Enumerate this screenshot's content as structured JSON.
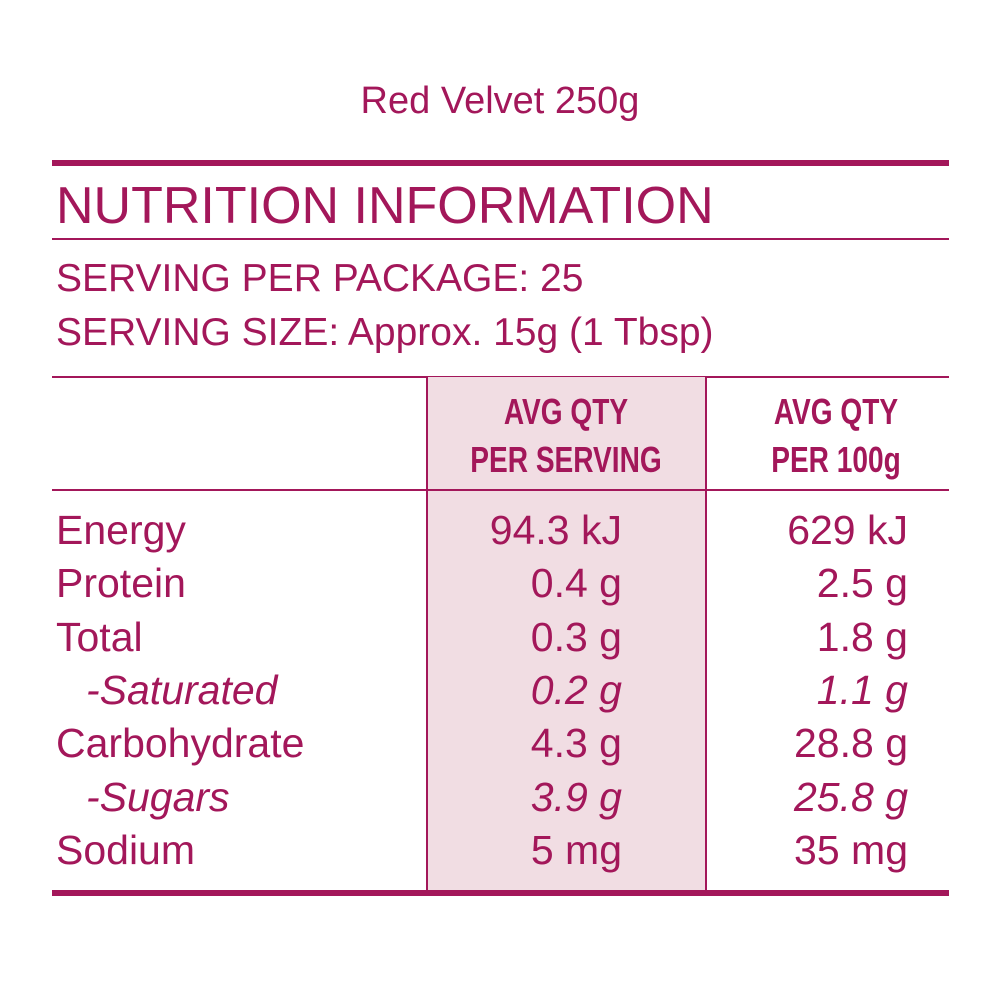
{
  "title": "Red Velvet 250g",
  "heading": "NUTRITION INFORMATION",
  "serving_per_package": "SERVING PER PACKAGE: 25",
  "serving_size": "SERVING SIZE: Approx. 15g (1 Tbsp)",
  "table": {
    "header": [
      [
        "AVG QTY",
        "PER SERVING"
      ],
      [
        "AVG QTY",
        "PER 100g"
      ]
    ],
    "rows": [
      {
        "cells": [
          "Energy",
          "94.3 kJ",
          "629 kJ"
        ]
      },
      {
        "cells": [
          "Protein",
          "0.4 g",
          "2.5 g"
        ]
      },
      {
        "cells": [
          "Total",
          "0.3 g",
          "1.8 g"
        ]
      },
      {
        "cells": [
          "-Saturated",
          "0.2 g",
          "1.1 g"
        ],
        "italic": true
      },
      {
        "cells": [
          "Carbohydrate",
          "4.3 g",
          "28.8 g"
        ]
      },
      {
        "cells": [
          "-Sugars",
          "3.9 g",
          "25.8 g"
        ],
        "italic": true
      },
      {
        "cells": [
          "Sodium",
          "5 mg",
          "35 mg"
        ]
      }
    ]
  }
}
